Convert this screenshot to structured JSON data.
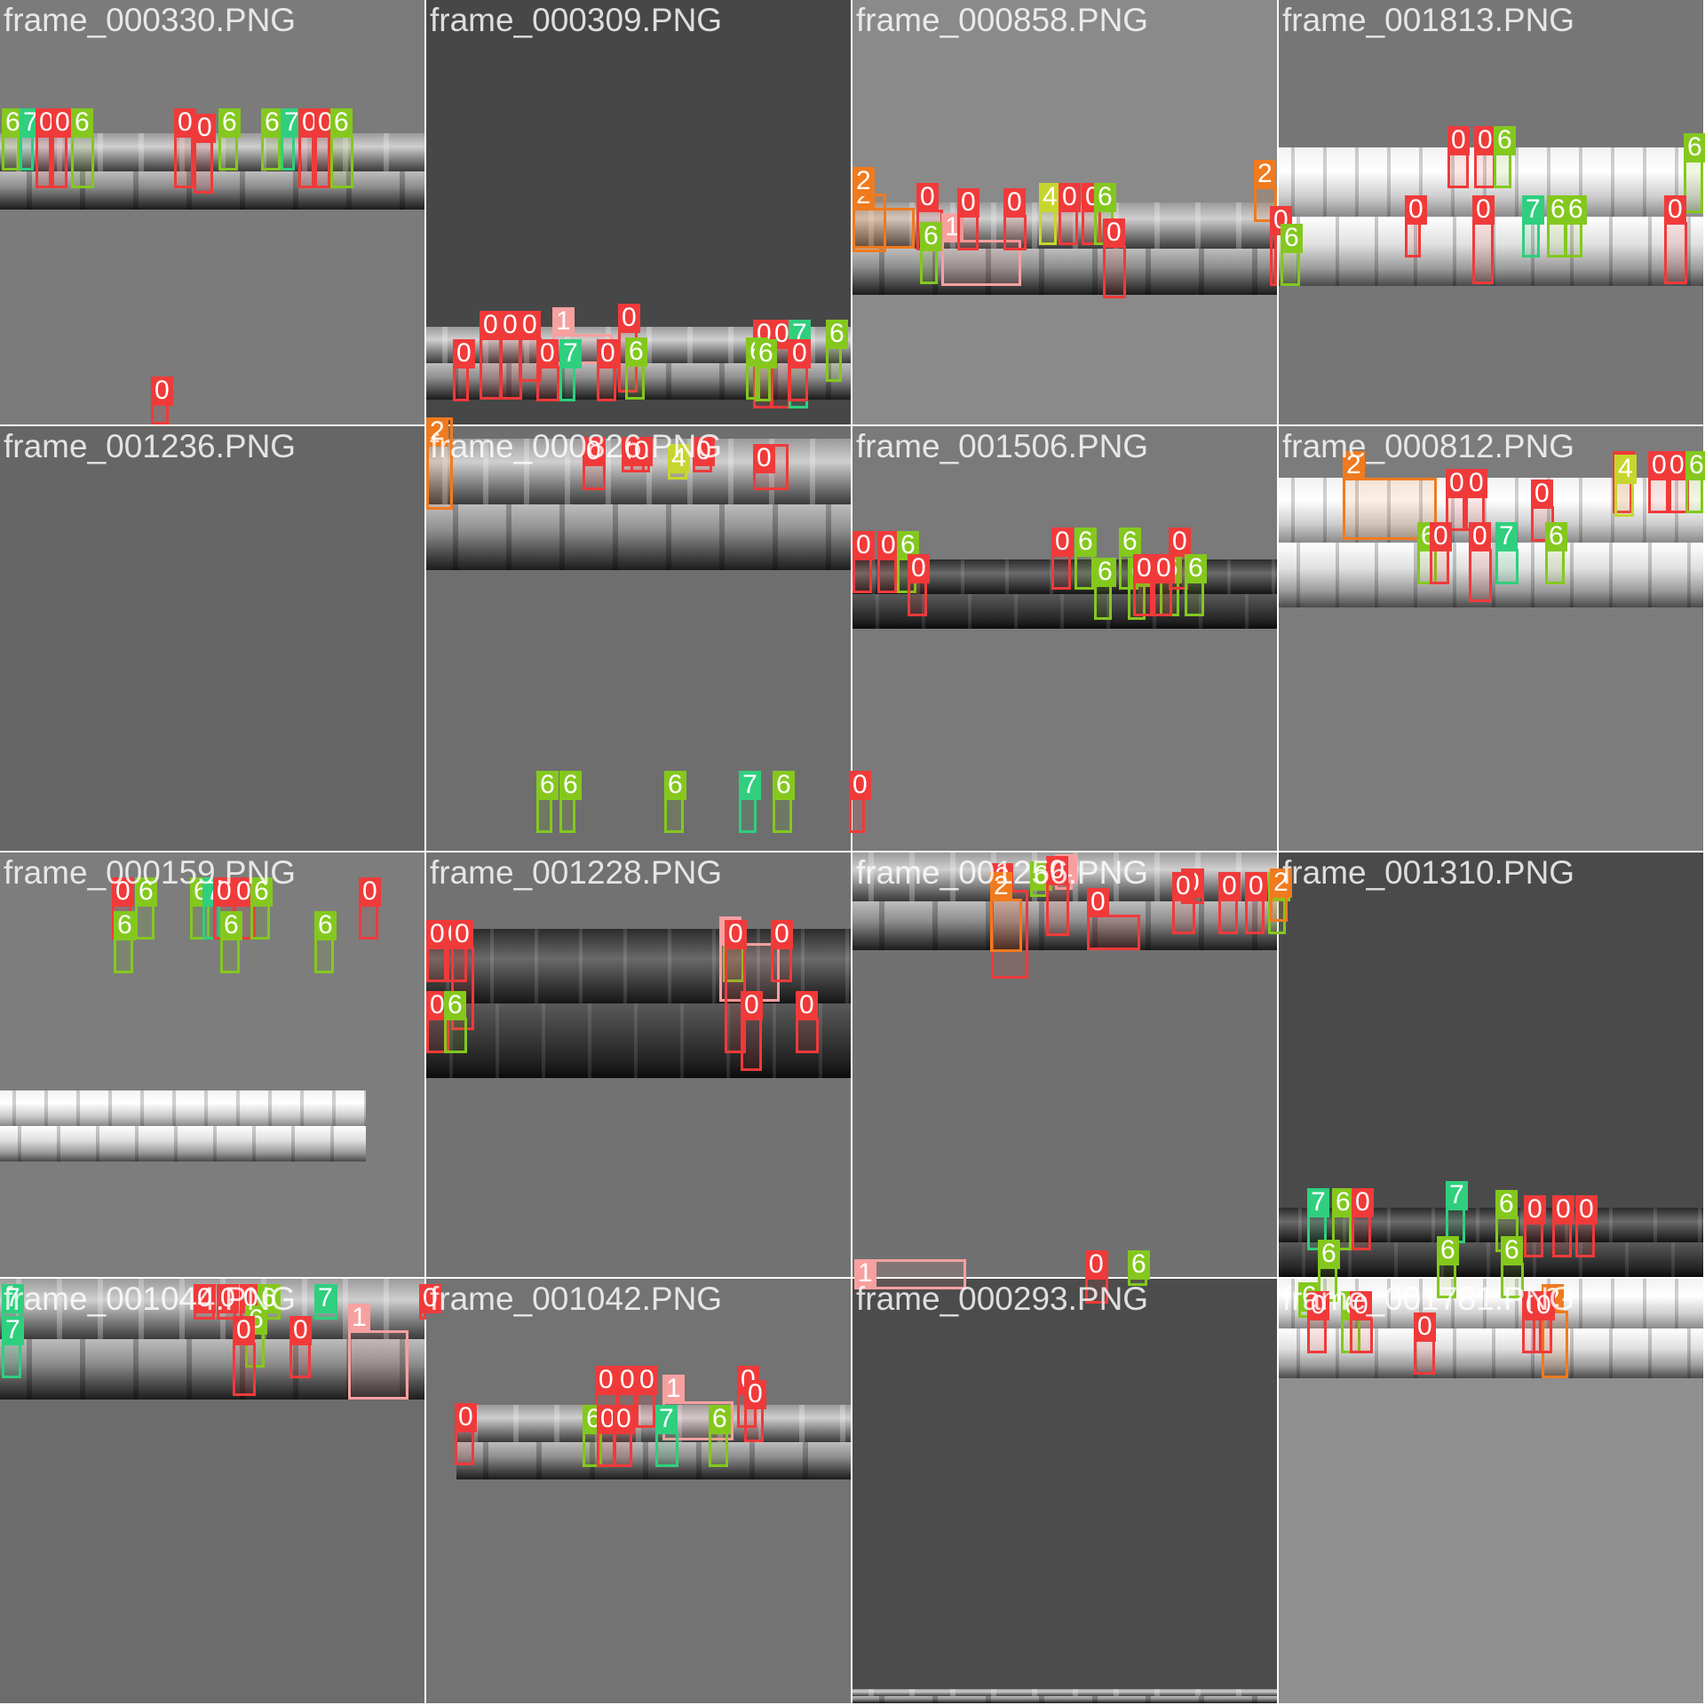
{
  "mosaic": {
    "class_colors": {
      "0": "#f03a3a",
      "1": "#f7a0a0",
      "2": "#f07a1e",
      "4": "#c7d62e",
      "6": "#84c81e",
      "7": "#2fcf7e"
    },
    "tiles": [
      {
        "label": "frame_000330.PNG",
        "bg": "#7b7b7b"
      },
      {
        "label": "frame_000309.PNG",
        "bg": "#474747"
      },
      {
        "label": "frame_000858.PNG",
        "bg": "#8a8a8a"
      },
      {
        "label": "frame_001813.PNG",
        "bg": "#767676"
      },
      {
        "label": "frame_001236.PNG",
        "bg": "#666666"
      },
      {
        "label": "frame_000826.PNG",
        "bg": "#6e6e6e"
      },
      {
        "label": "frame_001506.PNG",
        "bg": "#7a7a7a"
      },
      {
        "label": "frame_000812.PNG",
        "bg": "#7c7c7c"
      },
      {
        "label": "frame_000159.PNG",
        "bg": "#7d7d7d"
      },
      {
        "label": "frame_001228.PNG",
        "bg": "#727272"
      },
      {
        "label": "frame_001256.PNG",
        "bg": "#717171"
      },
      {
        "label": "frame_001310.PNG",
        "bg": "#4a4a4a"
      },
      {
        "label": "frame_001044.PNG",
        "bg": "#6c6c6c"
      },
      {
        "label": "frame_001042.PNG",
        "bg": "#737373"
      },
      {
        "label": "frame_000293.PNG",
        "bg": "#4c4c4c"
      },
      {
        "label": "frame_001781.PNG",
        "bg": "#8f8f8f"
      }
    ],
    "detections": [
      [
        "6",
        "7",
        "0",
        "0",
        "6",
        "0",
        "0",
        "6",
        "6",
        "7",
        "0",
        "0",
        "6",
        "0"
      ],
      [
        "1",
        "0",
        "0",
        "0",
        "0",
        "6",
        "0",
        "0",
        "7",
        "6",
        "6",
        "0",
        "0",
        "0",
        "7",
        "6",
        "0"
      ],
      [
        "2",
        "0",
        "1",
        "0",
        "0",
        "4",
        "0",
        "0",
        "6",
        "6",
        "0",
        "2",
        "2",
        "0"
      ],
      [
        "0",
        "0",
        "6",
        "6",
        "6",
        "0",
        "7",
        "6",
        "6",
        "0",
        "0"
      ],
      [],
      [
        "2",
        "6",
        "6",
        "6",
        "7",
        "6",
        "0",
        "0",
        "0",
        "0",
        "4",
        "0",
        "0"
      ],
      [
        "0",
        "0",
        "6",
        "0",
        "0",
        "6",
        "6",
        "6",
        "0",
        "6",
        "6",
        "0",
        "0",
        "6"
      ],
      [
        "2",
        "0",
        "0",
        "0",
        "0",
        "4",
        "0",
        "0",
        "6",
        "6",
        "0",
        "0",
        "7",
        "6"
      ],
      [
        "0",
        "6",
        "6",
        "7",
        "0",
        "0",
        "6",
        "0",
        "6",
        "6",
        "6"
      ],
      [
        "0",
        "0",
        "0",
        "6",
        "1",
        "0",
        "0",
        "0",
        "6",
        "0",
        "0"
      ],
      [
        "6",
        "1",
        "0",
        "2",
        "0",
        "0",
        "0",
        "0",
        "6",
        "2",
        "0",
        "0"
      ],
      [
        "7",
        "6",
        "0",
        "7",
        "6",
        "0",
        "0",
        "0",
        "6",
        "6",
        "6"
      ],
      [
        "7",
        "0",
        "0",
        "0",
        "6",
        "7",
        "0",
        "7",
        "1",
        "6",
        "0",
        "0"
      ],
      [
        "0",
        "0",
        "1",
        "0",
        "0",
        "0",
        "6",
        "0",
        "0",
        "7",
        "6",
        "0"
      ],
      [
        "1",
        "0",
        "6"
      ],
      [
        "6",
        "0",
        "6",
        "0",
        "0",
        "0",
        "2",
        "0"
      ]
    ]
  }
}
